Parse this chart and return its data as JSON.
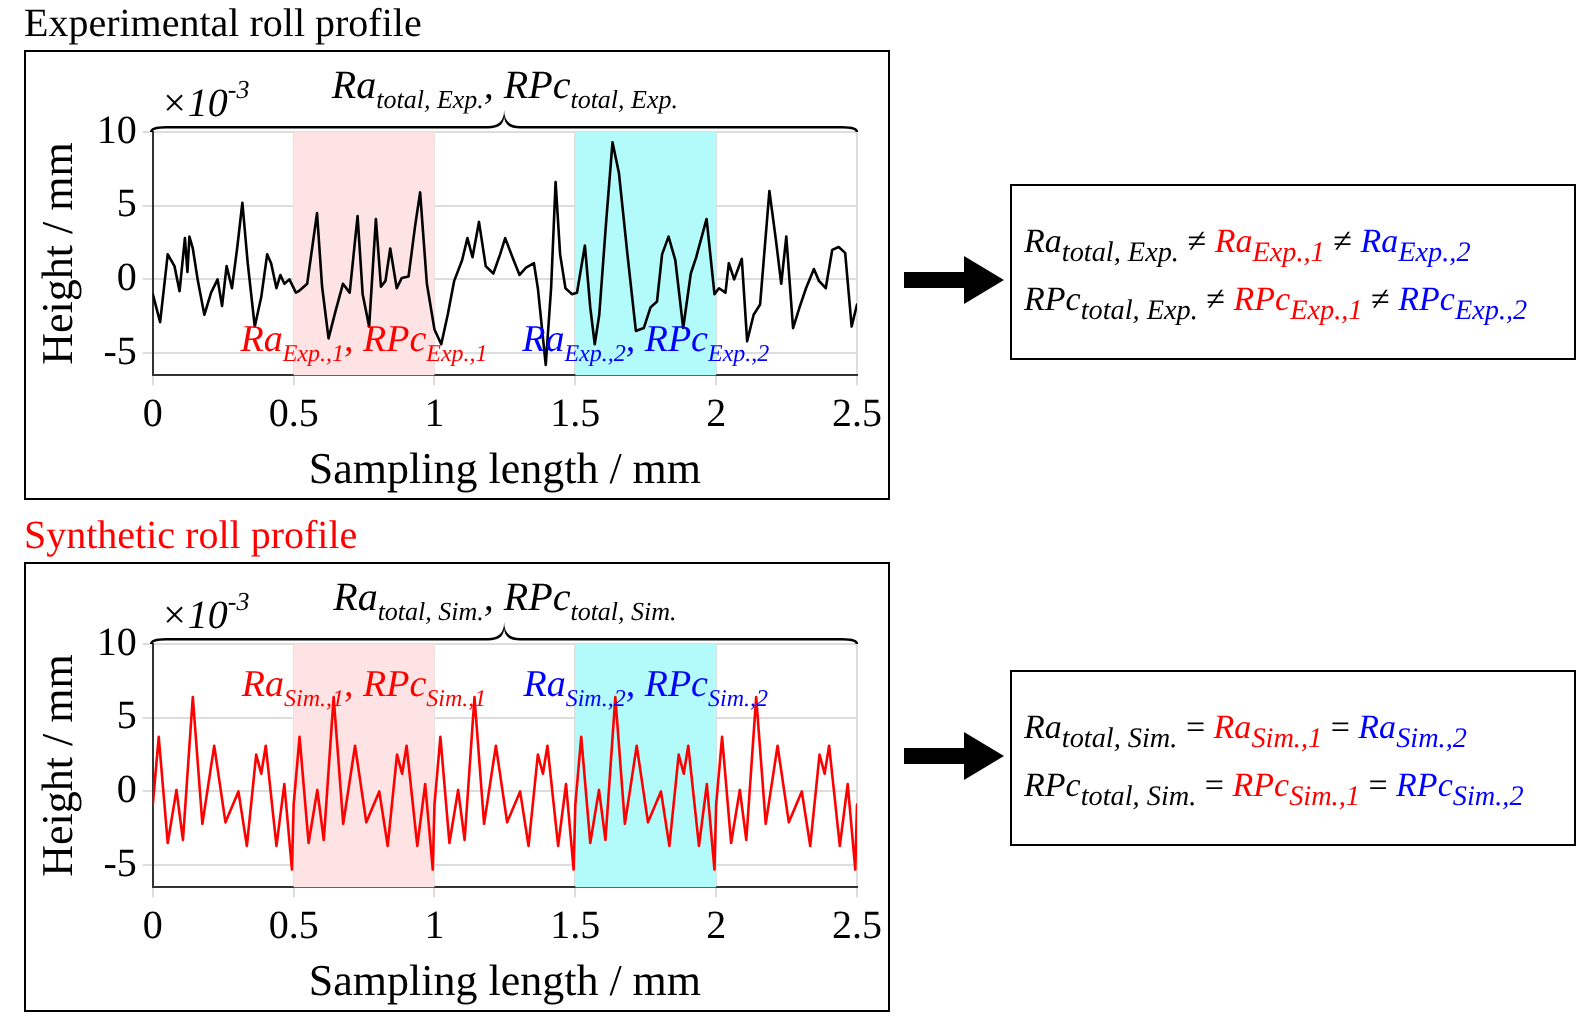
{
  "chart_data": [
    {
      "type": "line",
      "title": "Experimental roll profile",
      "xlabel": "Sampling length / mm",
      "ylabel": "Height / mm",
      "xlim": [
        0,
        2.5
      ],
      "ylim": [
        -6.5,
        10
      ],
      "xticks": [
        0,
        0.5,
        1,
        1.5,
        2,
        2.5
      ],
      "yticks": [
        -5,
        0,
        5,
        10
      ],
      "grid": true,
      "legend": false,
      "marker": "none",
      "bands": [
        {
          "axis": "x",
          "from": 0.5,
          "to": 1,
          "color": "#fde3e3",
          "label": "Ra$_{Exp.,1}$, RPc$_{Exp.,1}$"
        },
        {
          "axis": "x",
          "from": 1.5,
          "to": 2,
          "color": "#b3fafa",
          "label": "Ra$_{Exp.,2}$, RPc$_{Exp.,2}$"
        }
      ],
      "annotations": [
        "×10$^{-3}$",
        "Ra$_{total, Exp.}$, RPc$_{total, Exp.}$"
      ],
      "series": [
        {
          "color": "#000000",
          "x": [
            0,
            0.026,
            0.053,
            0.077,
            0.095,
            0.114,
            0.123,
            0.13,
            0.142,
            0.16,
            0.183,
            0.207,
            0.23,
            0.246,
            0.262,
            0.281,
            0.3,
            0.318,
            0.337,
            0.362,
            0.385,
            0.406,
            0.42,
            0.439,
            0.453,
            0.467,
            0.485,
            0.508,
            0.518,
            0.548,
            0.583,
            0.601,
            0.624,
            0.648,
            0.675,
            0.699,
            0.727,
            0.745,
            0.768,
            0.792,
            0.81,
            0.826,
            0.843,
            0.866,
            0.884,
            0.908,
            0.931,
            0.949,
            0.973,
            1.0,
            1.024,
            1.047,
            1.07,
            1.098,
            1.117,
            1.135,
            1.158,
            1.182,
            1.209,
            1.233,
            1.251,
            1.279,
            1.302,
            1.325,
            1.353,
            1.367,
            1.395,
            1.414,
            1.43,
            1.446,
            1.465,
            1.488,
            1.506,
            1.534,
            1.553,
            1.569,
            1.585,
            1.609,
            1.632,
            1.655,
            1.685,
            1.715,
            1.743,
            1.767,
            1.79,
            1.808,
            1.831,
            1.855,
            1.883,
            1.91,
            1.929,
            1.966,
            1.994,
            2.01,
            2.033,
            2.045,
            2.064,
            2.091,
            2.11,
            2.133,
            2.156,
            2.189,
            2.212,
            2.231,
            2.249,
            2.273,
            2.296,
            2.319,
            2.347,
            2.365,
            2.389,
            2.412,
            2.435,
            2.458,
            2.481,
            2.5
          ],
          "values": [
            -1.0,
            -2.9,
            1.7,
            0.9,
            -0.8,
            2.8,
            0.5,
            2.9,
            2.1,
            -0.1,
            -2.4,
            -0.9,
            0.0,
            -1.8,
            0.9,
            -0.6,
            2.2,
            5.2,
            1.1,
            -3.2,
            -1.2,
            1.7,
            1.1,
            -0.6,
            0.3,
            -0.3,
            0.0,
            -0.9,
            -0.8,
            -0.3,
            4.5,
            -0.5,
            -4.0,
            -2.2,
            -0.3,
            -0.9,
            4.3,
            -1.0,
            -3.2,
            4.1,
            -0.5,
            -0.1,
            2.1,
            -0.6,
            0.1,
            0.2,
            3.6,
            5.9,
            -0.3,
            -3.4,
            -4.4,
            -2.4,
            -0.1,
            1.3,
            2.8,
            1.5,
            3.9,
            0.9,
            0.4,
            1.7,
            2.8,
            1.4,
            0.3,
            0.8,
            1.1,
            -0.6,
            -5.8,
            -0.6,
            6.6,
            1.7,
            -0.6,
            -1.0,
            -0.9,
            2.3,
            -1.9,
            -4.4,
            -2.4,
            3.8,
            9.3,
            7.2,
            1.7,
            -3.5,
            -3.3,
            -1.9,
            -1.5,
            1.7,
            2.9,
            1.3,
            -3.3,
            0.4,
            1.5,
            4.1,
            -1.0,
            -0.6,
            -0.9,
            1.1,
            0.0,
            1.4,
            -4.2,
            -2.4,
            -1.7,
            6.0,
            2.7,
            -0.3,
            2.9,
            -3.3,
            -1.9,
            -0.6,
            0.7,
            -0.1,
            -0.6,
            2.0,
            2.2,
            1.8,
            -3.2,
            -1.7
          ]
        }
      ]
    },
    {
      "type": "other",
      "annotations": [
        "Ra$_{total, Exp.}$ ≠ Ra$_{Exp.,1}$ ≠ Ra$_{Exp.,2}$",
        "RPc$_{total, Exp.}$ ≠ RPc$_{Exp.,1}$ ≠ RPc$_{Exp.,2}$"
      ]
    },
    {
      "type": "line",
      "title": "Synthetic roll profile",
      "xlabel": "Sampling length / mm",
      "ylabel": "Height / mm",
      "xlim": [
        0,
        2.5
      ],
      "ylim": [
        -6.5,
        10
      ],
      "xticks": [
        0,
        0.5,
        1,
        1.5,
        2,
        2.5
      ],
      "yticks": [
        -5,
        0,
        5,
        10
      ],
      "grid": true,
      "legend": false,
      "marker": "none",
      "bands": [
        {
          "axis": "x",
          "from": 0.5,
          "to": 1,
          "color": "#fde3e3",
          "label": "Ra$_{Sim.,1}$, RPc$_{Sim.,1}$"
        },
        {
          "axis": "x",
          "from": 1.5,
          "to": 2,
          "color": "#b3fafa",
          "label": "Ra$_{Sim.,2}$, RPc$_{Sim.,2}$"
        }
      ],
      "annotations": [
        "×10$^{-3}$",
        "Ra$_{total, Sim.}$, RPc$_{total, Sim.}$"
      ],
      "series": [
        {
          "color": "#ff0000",
          "x": [
            0,
            0.021,
            0.053,
            0.084,
            0.107,
            0.142,
            0.176,
            0.218,
            0.258,
            0.304,
            0.334,
            0.367,
            0.385,
            0.401,
            0.439,
            0.467,
            0.494,
            0.5,
            0.521,
            0.553,
            0.584,
            0.607,
            0.642,
            0.676,
            0.718,
            0.758,
            0.804,
            0.834,
            0.867,
            0.885,
            0.901,
            0.939,
            0.967,
            0.994,
            1.0,
            1.021,
            1.053,
            1.084,
            1.107,
            1.142,
            1.176,
            1.218,
            1.258,
            1.304,
            1.334,
            1.367,
            1.385,
            1.401,
            1.439,
            1.467,
            1.494,
            1.5,
            1.521,
            1.553,
            1.584,
            1.607,
            1.642,
            1.676,
            1.718,
            1.758,
            1.804,
            1.834,
            1.867,
            1.885,
            1.901,
            1.939,
            1.967,
            1.994,
            2.0,
            2.021,
            2.053,
            2.084,
            2.107,
            2.142,
            2.176,
            2.218,
            2.258,
            2.304,
            2.334,
            2.367,
            2.385,
            2.401,
            2.439,
            2.467,
            2.494,
            2.5
          ],
          "values": [
            -0.9,
            3.7,
            -3.5,
            0.1,
            -3.3,
            6.4,
            -2.2,
            3.1,
            -2.1,
            0.0,
            -3.7,
            2.5,
            1.2,
            3.1,
            -3.7,
            0.5,
            -5.3,
            -0.9,
            3.7,
            -3.5,
            0.1,
            -3.3,
            6.4,
            -2.2,
            3.1,
            -2.1,
            0.0,
            -3.7,
            2.5,
            1.2,
            3.1,
            -3.7,
            0.5,
            -5.3,
            -0.9,
            3.7,
            -3.5,
            0.1,
            -3.3,
            6.4,
            -2.2,
            3.1,
            -2.1,
            0.0,
            -3.7,
            2.5,
            1.2,
            3.1,
            -3.7,
            0.5,
            -5.3,
            -0.9,
            3.7,
            -3.5,
            0.1,
            -3.3,
            6.4,
            -2.2,
            3.1,
            -2.1,
            0.0,
            -3.7,
            2.5,
            1.2,
            3.1,
            -3.7,
            0.5,
            -5.3,
            -0.9,
            3.7,
            -3.5,
            0.1,
            -3.3,
            6.4,
            -2.2,
            3.1,
            -2.1,
            0.0,
            -3.7,
            2.5,
            1.2,
            3.1,
            -3.7,
            0.5,
            -5.3,
            -0.9
          ]
        }
      ]
    },
    {
      "type": "other",
      "annotations": [
        "Ra$_{total, Sim.}$ = Ra$_{Sim.,1}$ = Ra$_{Sim.,2}$",
        "RPc$_{total, Sim.}$ = RPc$_{Sim.,1}$ = RPc$_{Sim.,2}$"
      ]
    }
  ]
}
